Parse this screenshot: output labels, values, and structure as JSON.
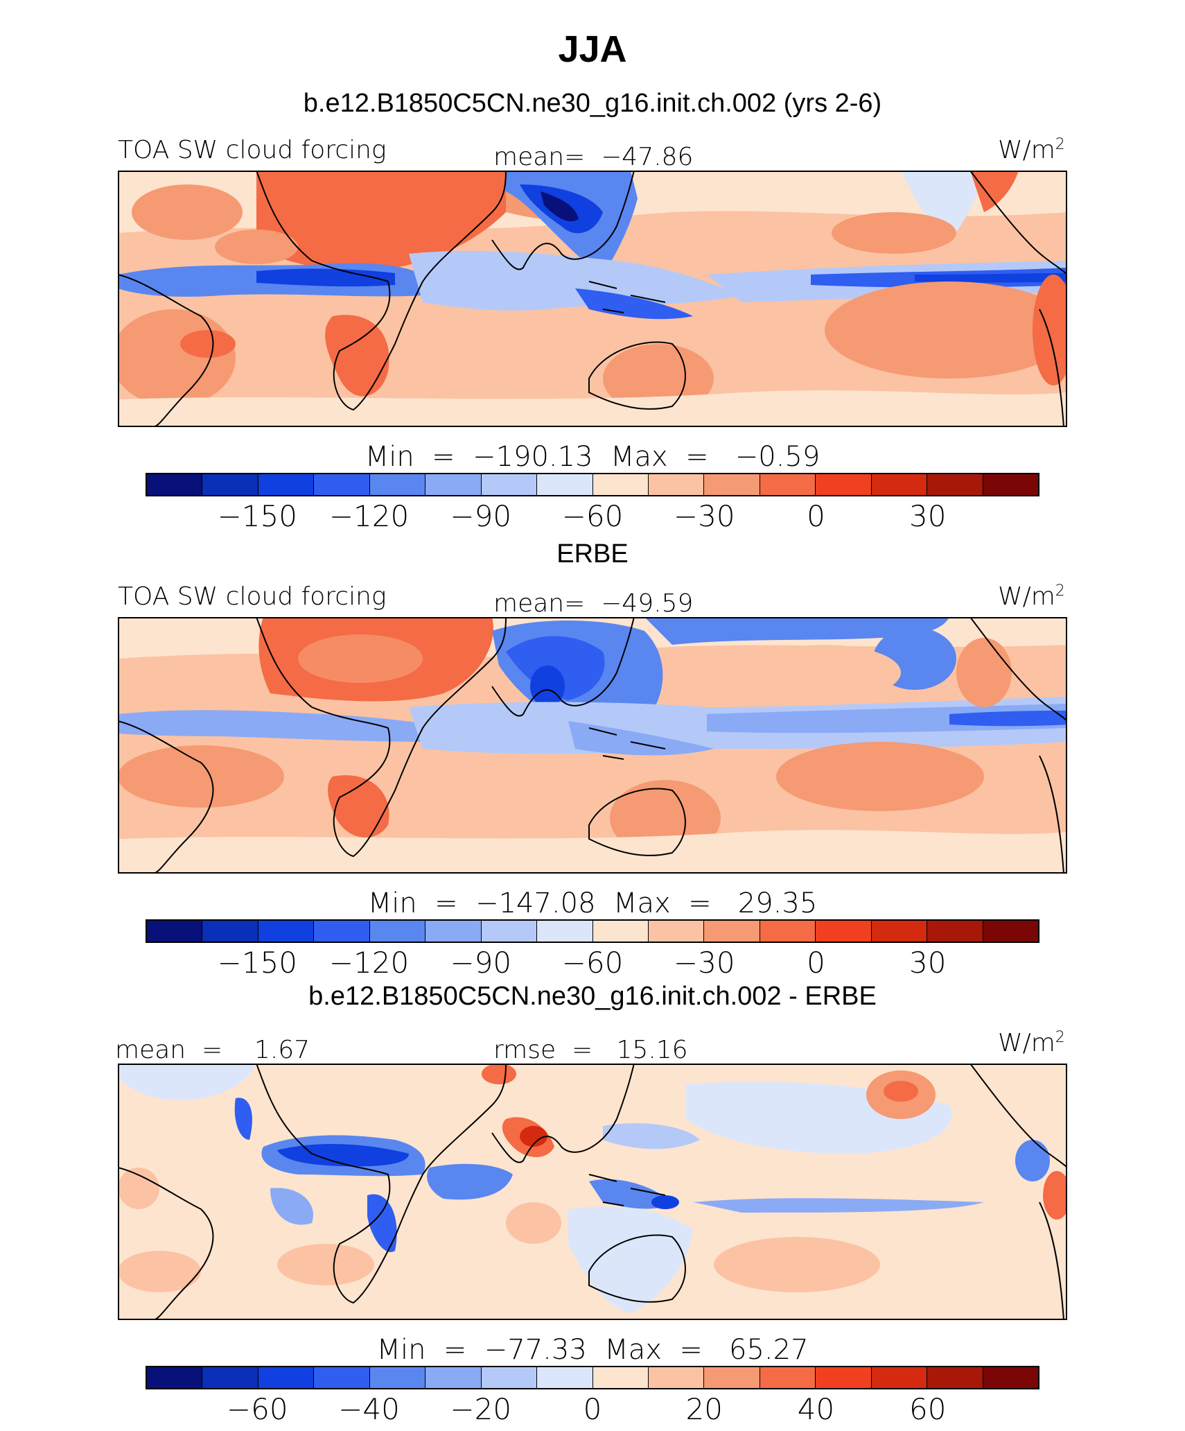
{
  "title": "JJA",
  "colors": {
    "palette": [
      "#08107a",
      "#0a2fb8",
      "#1040e0",
      "#2f5ef0",
      "#5a86f0",
      "#8aaaf5",
      "#b4c9f8",
      "#dbe6fb",
      "#fde4cf",
      "#fbc3a3",
      "#f59a73",
      "#f46b45",
      "#f04020",
      "#d42a10",
      "#a81808",
      "#7a0606"
    ]
  },
  "panels": [
    {
      "title": "b.e12.B1850C5CN.ne30_g16.init.ch.002 (yrs 2-6)",
      "left_label": "TOA SW cloud forcing",
      "center_label": "mean=  −47.86",
      "units": "W/m",
      "units_sup": "2",
      "minmax": "Min  =  −190.13  Max  =   −0.59",
      "ticks": [
        "−150",
        "−120",
        "−90",
        "−60",
        "−30",
        "0",
        "30"
      ]
    },
    {
      "title": "ERBE",
      "left_label": "TOA SW cloud forcing",
      "center_label": "mean=  −49.59",
      "units": "W/m",
      "units_sup": "2",
      "minmax": "Min  =  −147.08  Max  =   29.35",
      "ticks": [
        "−150",
        "−120",
        "−90",
        "−60",
        "−30",
        "0",
        "30"
      ]
    },
    {
      "title": "b.e12.B1850C5CN.ne30_g16.init.ch.002 - ERBE",
      "left_label": "mean  =    1.67",
      "center_label": "rmse  =   15.16",
      "units": "W/m",
      "units_sup": "2",
      "minmax": "Min  =  −77.33  Max  =   65.27",
      "ticks": [
        "−60",
        "−40",
        "−20",
        "0",
        "20",
        "40",
        "60"
      ]
    }
  ]
}
